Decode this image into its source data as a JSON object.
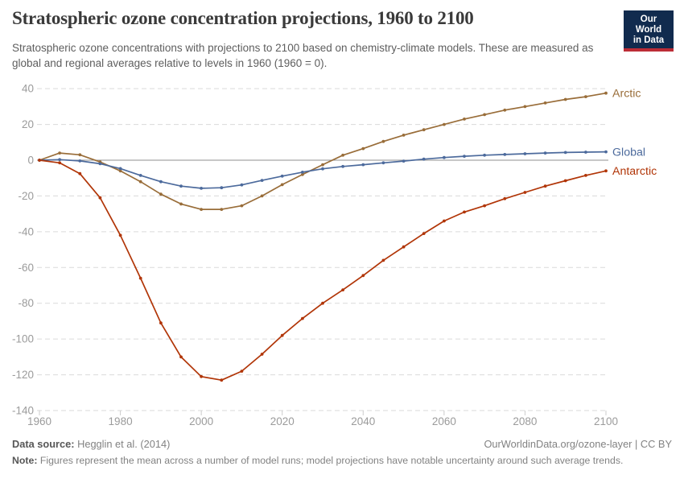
{
  "header": {
    "title": "Stratospheric ozone concentration projections, 1960 to 2100",
    "subtitle": "Stratospheric ozone concentrations with projections to 2100 based on chemistry-climate models. These are measured as global and regional averages relative to levels in 1960 (1960 = 0).",
    "logo": {
      "line1": "Our World",
      "line2": "in Data",
      "bg_color": "#112b4e",
      "stripe_color": "#bc2d36"
    }
  },
  "chart_data": {
    "type": "line",
    "title": "Stratospheric ozone concentration projections, 1960 to 2100",
    "xlabel": "",
    "ylabel": "",
    "xlim": [
      1960,
      2100
    ],
    "ylim": [
      -140,
      45
    ],
    "grid": "horizontal-dashed",
    "zero_line": true,
    "legend_position": "line-end-labels",
    "x": [
      1960,
      1965,
      1970,
      1975,
      1980,
      1985,
      1990,
      1995,
      2000,
      2005,
      2010,
      2015,
      2020,
      2025,
      2030,
      2035,
      2040,
      2045,
      2050,
      2055,
      2060,
      2065,
      2070,
      2075,
      2080,
      2085,
      2090,
      2095,
      2100
    ],
    "series": [
      {
        "name": "Arctic",
        "color": "#996D39",
        "values": [
          0,
          4,
          3,
          -1,
          -6,
          -12,
          -19,
          -24.5,
          -27.5,
          -27.5,
          -25.5,
          -20,
          -13.7,
          -8,
          -2.5,
          2.8,
          6.5,
          10.5,
          14,
          17,
          20,
          23,
          25.5,
          28,
          30,
          32,
          34,
          35.5,
          37.5
        ]
      },
      {
        "name": "Global",
        "color": "#4C6A9C",
        "values": [
          0,
          0.3,
          -0.4,
          -2,
          -4.7,
          -8.5,
          -12,
          -14.5,
          -15.7,
          -15.4,
          -13.8,
          -11.3,
          -8.9,
          -6.7,
          -4.8,
          -3.5,
          -2.5,
          -1.5,
          -0.5,
          0.6,
          1.5,
          2.2,
          2.8,
          3.2,
          3.6,
          4,
          4.3,
          4.5,
          4.7
        ]
      },
      {
        "name": "Antarctic",
        "color": "#B13507",
        "values": [
          0,
          -1.5,
          -7.5,
          -21,
          -42,
          -66,
          -91,
          -110,
          -121,
          -123,
          -118,
          -108.5,
          -98,
          -88.5,
          -80,
          -72.5,
          -64.5,
          -56,
          -48.5,
          -41,
          -34,
          -29,
          -25.5,
          -21.5,
          -18,
          -14.5,
          -11.5,
          -8.5,
          -6
        ]
      }
    ],
    "y_ticks": [
      40,
      20,
      0,
      -20,
      -40,
      -60,
      -80,
      -100,
      -120,
      -140
    ],
    "x_ticks": [
      1960,
      1980,
      2000,
      2020,
      2040,
      2060,
      2080,
      2100
    ]
  },
  "footer": {
    "source_label": "Data source:",
    "source_value": " Hegglin et al. (2014)",
    "link": "OurWorldinData.org/ozone-layer | CC BY",
    "note_label": "Note:",
    "note_value": " Figures represent the mean across a number of model runs; model projections have notable uncertainty around such average trends."
  }
}
